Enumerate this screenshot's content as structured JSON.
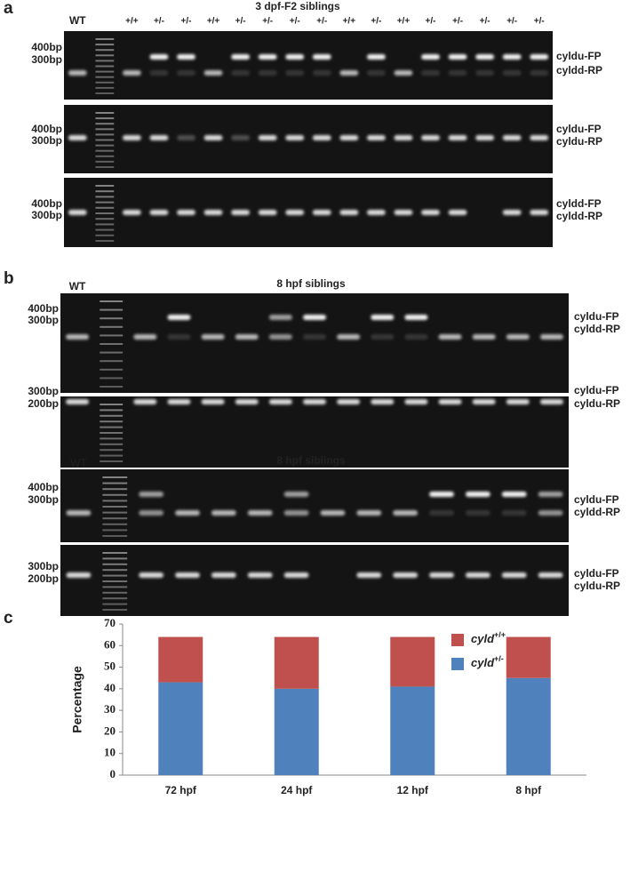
{
  "panel_labels": [
    "a",
    "b",
    "c"
  ],
  "panel_a": {
    "title": "3 dpf-F2 siblings",
    "wt_label": "WT",
    "lane_labels": [
      "+/+",
      "+/-",
      "+/-",
      "+/+",
      "+/-",
      "+/-",
      "+/-",
      "+/-",
      "+/+",
      "+/-",
      "+/+",
      "+/-",
      "+/-",
      "+/-",
      "+/-",
      "+/-"
    ],
    "strips": [
      {
        "size_labels": [
          "400bp",
          "300bp"
        ],
        "primer_labels": [
          "cyldu-FP",
          "cyldd-RP"
        ]
      },
      {
        "size_labels": [
          "400bp",
          "300bp"
        ],
        "primer_labels": [
          "cyldu-FP",
          "cyldu-RP"
        ]
      },
      {
        "size_labels": [
          "400bp",
          "300bp"
        ],
        "primer_labels": [
          "cyldd-FP",
          "cyldd-RP"
        ]
      }
    ]
  },
  "panel_b": {
    "gels": [
      {
        "title": "8 hpf siblings",
        "wt_label": "WT",
        "strips": [
          {
            "size_labels": [
              "400bp",
              "300bp"
            ],
            "primer_labels": [
              "cyldu-FP",
              "cyldd-RP"
            ]
          },
          {
            "size_labels": [
              "300bp",
              "200bp"
            ],
            "primer_labels": [
              "cyldu-FP",
              "cyldu-RP"
            ]
          }
        ]
      },
      {
        "title": "8 hpf siblings",
        "wt_label": "WT",
        "strips": [
          {
            "size_labels": [
              "400bp",
              "300bp"
            ],
            "primer_labels": [
              "cyldu-FP",
              "cyldd-RP"
            ]
          },
          {
            "size_labels": [
              "300bp",
              "200bp"
            ],
            "primer_labels": [
              "cyldu-FP",
              "cyldu-RP"
            ]
          }
        ]
      }
    ]
  },
  "chart_data": {
    "type": "stacked_bar",
    "y_label": "Percentage",
    "categories": [
      "72 hpf",
      "24 hpf",
      "12 hpf",
      "8 hpf"
    ],
    "series": [
      {
        "name": "cyld+/-",
        "color": "#4f81bd",
        "values": [
          43,
          40,
          41,
          45
        ]
      },
      {
        "name": "cyld+/+",
        "color": "#c0504d",
        "values": [
          21,
          24,
          23,
          19
        ]
      }
    ],
    "ylim": [
      0,
      70
    ],
    "yticks": [
      0,
      10,
      20,
      30,
      40,
      50,
      60,
      70
    ],
    "grid": false,
    "legend": "top-right"
  }
}
